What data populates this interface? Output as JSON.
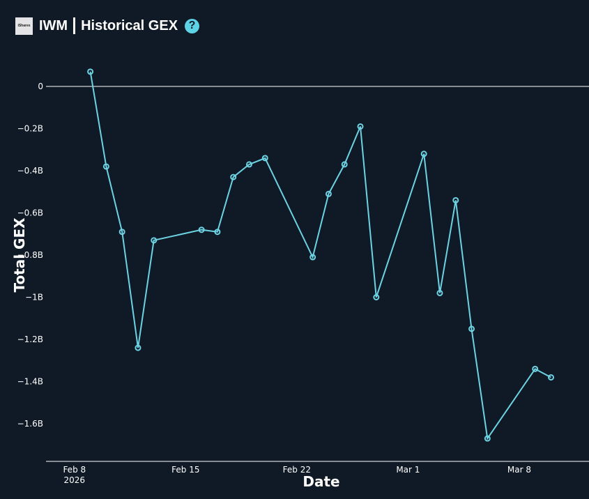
{
  "header": {
    "logo_text": "iShares",
    "ticker": "IWM",
    "title": "Historical GEX",
    "help_icon": "question-circle-icon",
    "accent_color": "#5fd3e6"
  },
  "chart_data": {
    "type": "line",
    "xlabel": "Date",
    "ylabel": "Total GEX",
    "ylim": [
      -1.78,
      0.14
    ],
    "y_unit": "B",
    "yticks": [
      0,
      -0.2,
      -0.4,
      -0.6,
      -0.8,
      -1,
      -1.2,
      -1.4,
      -1.6
    ],
    "ytick_labels": [
      "0",
      "−0.2B",
      "−0.4B",
      "−0.6B",
      "−0.8B",
      "−1B",
      "−1.2B",
      "−1.4B",
      "−1.6B"
    ],
    "x_range": [
      "2026-02-07",
      "2026-03-10"
    ],
    "xticks": [
      "2026-02-08",
      "2026-02-15",
      "2026-02-22",
      "2026-03-01",
      "2026-03-08"
    ],
    "xtick_labels": [
      "Feb 8",
      "Feb 15",
      "Feb 22",
      "Mar 1",
      "Mar 8"
    ],
    "xtick_sublabel": "2026",
    "zero_line": true,
    "grid": false,
    "line_color": "#6dd3e2",
    "series": [
      {
        "x": [
          "2026-02-09",
          "2026-02-10",
          "2026-02-11",
          "2026-02-12",
          "2026-02-13",
          "2026-02-16",
          "2026-02-17",
          "2026-02-18",
          "2026-02-19",
          "2026-02-20",
          "2026-02-23",
          "2026-02-24",
          "2026-02-25",
          "2026-02-26",
          "2026-02-27",
          "2026-03-02",
          "2026-03-03",
          "2026-03-04",
          "2026-03-05",
          "2026-03-06",
          "2026-03-09",
          "2026-03-10"
        ],
        "y": [
          0.07,
          -0.38,
          -0.69,
          -1.24,
          -0.73,
          -0.68,
          -0.69,
          -0.43,
          -0.37,
          -0.34,
          -0.81,
          -0.51,
          -0.37,
          -0.19,
          -1.0,
          -0.32,
          -0.98,
          -0.54,
          -1.15,
          -1.67,
          -1.34,
          -1.38
        ]
      }
    ]
  }
}
